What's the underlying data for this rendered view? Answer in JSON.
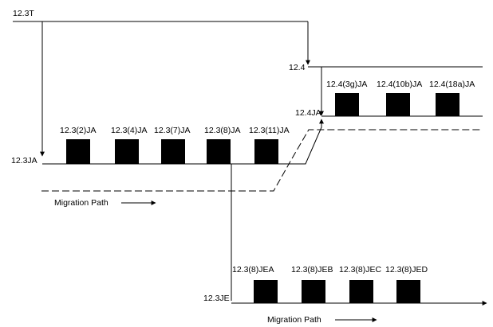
{
  "trains": {
    "t_123t": "12.3T",
    "t_124": "12.4",
    "t_124ja": "12.4JA",
    "t_123ja": "12.3JA",
    "t_123je": "12.3JE"
  },
  "releases_124ja": [
    "12.4(3g)JA",
    "12.4(10b)JA",
    "12.4(18a)JA"
  ],
  "releases_123ja": [
    "12.3(2)JA",
    "12.3(4)JA",
    "12.3(7)JA",
    "12.3(8)JA",
    "12.3(11)JA"
  ],
  "releases_123je": [
    "12.3(8)JEA",
    "12.3(8)JEB",
    "12.3(8)JEC",
    "12.3(8)JED"
  ],
  "migration": {
    "upper_label": "Migration Path",
    "lower_label": "Migration Path"
  }
}
